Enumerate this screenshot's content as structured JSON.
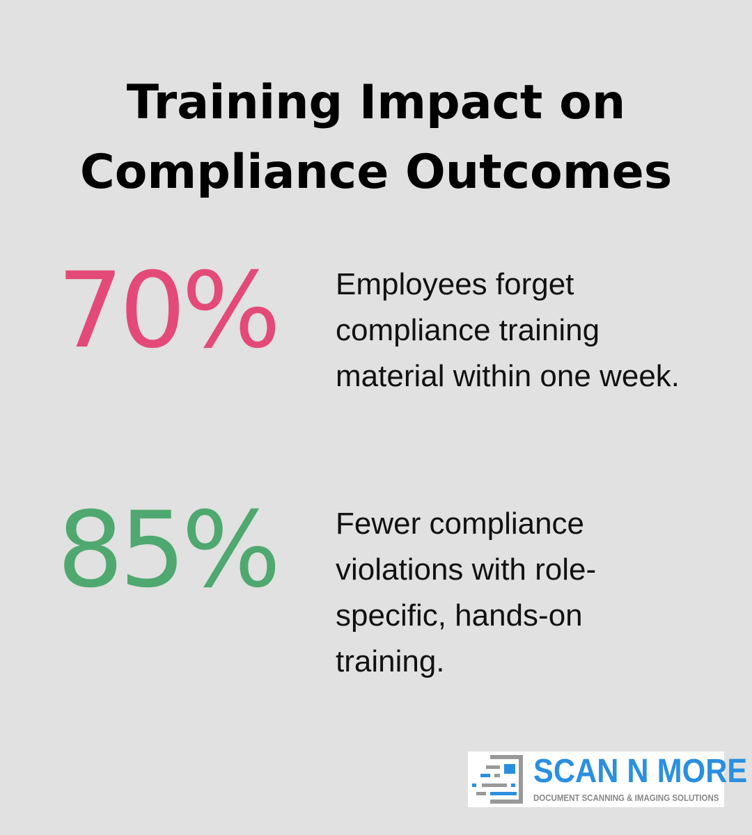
{
  "title": "Training Impact on Compliance Outcomes",
  "stats": [
    {
      "value": "70%",
      "text": "Employees forget compliance training material within one week.",
      "color": "#e44a78"
    },
    {
      "value": "85%",
      "text": "Fewer compliance violations with role-specific, hands-on training.",
      "color": "#4fa86f"
    }
  ],
  "logo": {
    "name": "SCAN N MORE",
    "tagline": "DOCUMENT SCANNING & IMAGING SOLUTIONS"
  }
}
